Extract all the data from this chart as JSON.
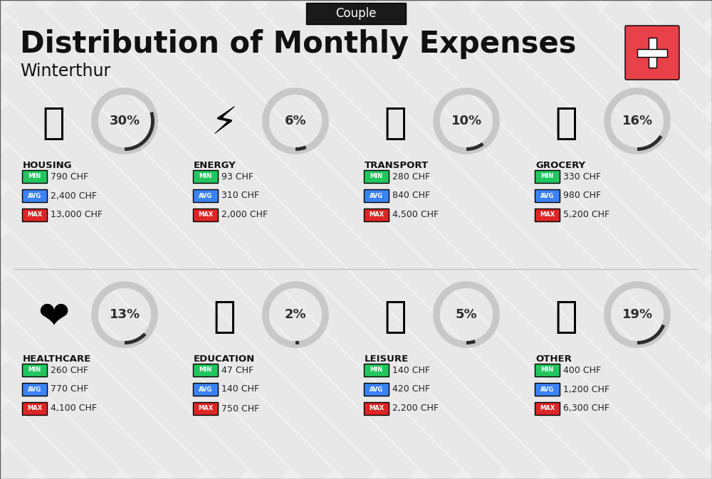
{
  "title": "Distribution of Monthly Expenses",
  "subtitle": "Couple",
  "location": "Winterthur",
  "bg_color": "#efefef",
  "title_color": "#111111",
  "subtitle_bg": "#1a1a1a",
  "subtitle_text_color": "#ffffff",
  "swiss_cross_bg": "#e8414a",
  "categories": [
    {
      "name": "HOUSING",
      "percent": 30,
      "min": "790 CHF",
      "avg": "2,400 CHF",
      "max": "13,000 CHF",
      "row": 0,
      "col": 0,
      "icon": "🏛"
    },
    {
      "name": "ENERGY",
      "percent": 6,
      "min": "93 CHF",
      "avg": "310 CHF",
      "max": "2,000 CHF",
      "row": 0,
      "col": 1,
      "icon": "⚡"
    },
    {
      "name": "TRANSPORT",
      "percent": 10,
      "min": "280 CHF",
      "avg": "840 CHF",
      "max": "4,500 CHF",
      "row": 0,
      "col": 2,
      "icon": "🚌"
    },
    {
      "name": "GROCERY",
      "percent": 16,
      "min": "330 CHF",
      "avg": "980 CHF",
      "max": "5,200 CHF",
      "row": 0,
      "col": 3,
      "icon": "🛒"
    },
    {
      "name": "HEALTHCARE",
      "percent": 13,
      "min": "260 CHF",
      "avg": "770 CHF",
      "max": "4,100 CHF",
      "row": 1,
      "col": 0,
      "icon": "❤"
    },
    {
      "name": "EDUCATION",
      "percent": 2,
      "min": "47 CHF",
      "avg": "140 CHF",
      "max": "750 CHF",
      "row": 1,
      "col": 1,
      "icon": "🎓"
    },
    {
      "name": "LEISURE",
      "percent": 5,
      "min": "140 CHF",
      "avg": "420 CHF",
      "max": "2,200 CHF",
      "row": 1,
      "col": 2,
      "icon": "🛍"
    },
    {
      "name": "OTHER",
      "percent": 19,
      "min": "400 CHF",
      "avg": "1,200 CHF",
      "max": "6,300 CHF",
      "row": 1,
      "col": 3,
      "icon": "💰"
    }
  ],
  "min_color": "#22c55e",
  "avg_color": "#3b82f6",
  "max_color": "#dc2626",
  "label_texts": [
    "MIN",
    "AVG",
    "MAX"
  ],
  "donut_arc_color": "#2d2d2d",
  "donut_bg_color": "#c8c8c8",
  "stripe_color": "#e0e0e0",
  "category_name_color": "#111111",
  "value_text_color": "#222222"
}
